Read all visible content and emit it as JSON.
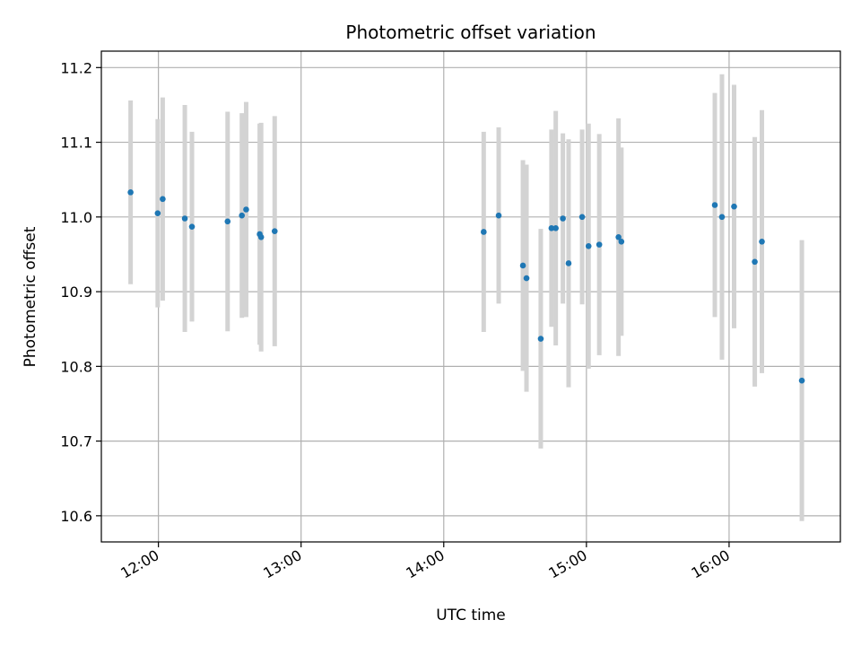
{
  "chart_data": {
    "type": "scatter",
    "title": "Photometric offset variation",
    "xlabel": "UTC time",
    "ylabel": "Photometric offset",
    "xlim_hours": [
      11.6,
      16.78
    ],
    "ylim": [
      10.565,
      11.222
    ],
    "grid": true,
    "x_ticks": [
      {
        "label": "12:00",
        "hour": 12.0
      },
      {
        "label": "13:00",
        "hour": 13.0
      },
      {
        "label": "14:00",
        "hour": 14.0
      },
      {
        "label": "15:00",
        "hour": 15.0
      },
      {
        "label": "16:00",
        "hour": 16.0
      }
    ],
    "y_ticks": [
      {
        "label": "10.6",
        "value": 10.6
      },
      {
        "label": "10.7",
        "value": 10.7
      },
      {
        "label": "10.8",
        "value": 10.8
      },
      {
        "label": "10.9",
        "value": 10.9
      },
      {
        "label": "11.0",
        "value": 11.0
      },
      {
        "label": "11.1",
        "value": 11.1
      },
      {
        "label": "11.2",
        "value": 11.2
      }
    ],
    "point_color": "#1f77b4",
    "errorbar_color": "#d3d3d3",
    "points": [
      {
        "x": 11.805,
        "y": 11.033,
        "err": 0.123
      },
      {
        "x": 11.995,
        "y": 11.005,
        "err": 0.126
      },
      {
        "x": 12.03,
        "y": 11.024,
        "err": 0.136
      },
      {
        "x": 12.185,
        "y": 10.998,
        "err": 0.152
      },
      {
        "x": 12.235,
        "y": 10.987,
        "err": 0.127
      },
      {
        "x": 12.485,
        "y": 10.994,
        "err": 0.147
      },
      {
        "x": 12.585,
        "y": 11.002,
        "err": 0.137
      },
      {
        "x": 12.615,
        "y": 11.01,
        "err": 0.144
      },
      {
        "x": 12.71,
        "y": 10.977,
        "err": 0.148
      },
      {
        "x": 12.72,
        "y": 10.973,
        "err": 0.153
      },
      {
        "x": 12.815,
        "y": 10.981,
        "err": 0.154
      },
      {
        "x": 14.28,
        "y": 10.98,
        "err": 0.134
      },
      {
        "x": 14.385,
        "y": 11.002,
        "err": 0.118
      },
      {
        "x": 14.555,
        "y": 10.935,
        "err": 0.141
      },
      {
        "x": 14.58,
        "y": 10.918,
        "err": 0.152
      },
      {
        "x": 14.68,
        "y": 10.837,
        "err": 0.147
      },
      {
        "x": 14.755,
        "y": 10.985,
        "err": 0.132
      },
      {
        "x": 14.785,
        "y": 10.985,
        "err": 0.157
      },
      {
        "x": 14.835,
        "y": 10.998,
        "err": 0.114
      },
      {
        "x": 14.875,
        "y": 10.938,
        "err": 0.166
      },
      {
        "x": 14.97,
        "y": 11.0,
        "err": 0.117
      },
      {
        "x": 15.015,
        "y": 10.961,
        "err": 0.164
      },
      {
        "x": 15.09,
        "y": 10.963,
        "err": 0.148
      },
      {
        "x": 15.225,
        "y": 10.973,
        "err": 0.159
      },
      {
        "x": 15.245,
        "y": 10.967,
        "err": 0.126
      },
      {
        "x": 15.9,
        "y": 11.016,
        "err": 0.15
      },
      {
        "x": 15.95,
        "y": 11.0,
        "err": 0.191
      },
      {
        "x": 16.035,
        "y": 11.014,
        "err": 0.163
      },
      {
        "x": 16.18,
        "y": 10.94,
        "err": 0.167
      },
      {
        "x": 16.23,
        "y": 10.967,
        "err": 0.176
      },
      {
        "x": 16.51,
        "y": 10.781,
        "err": 0.188
      }
    ]
  }
}
